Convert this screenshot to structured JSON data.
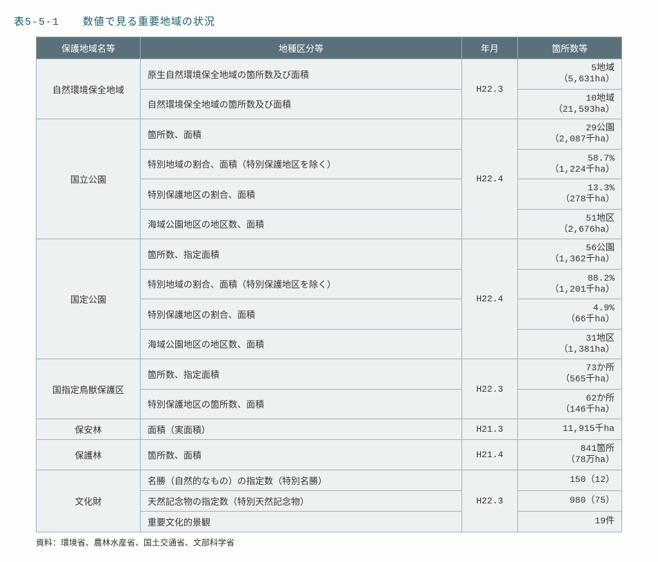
{
  "title_num": "表5-5-1",
  "title_text": "数値で見る重要地域の状況",
  "columns": [
    "保護地域名等",
    "地種区分等",
    "年月",
    "箇所数等"
  ],
  "groups": [
    {
      "name": "自然環境保全地域",
      "ym": "H22.3",
      "rows": [
        {
          "kind": "原生自然環境保全地域の箇所数及び面積",
          "val": "5地域<br>（5,631ha）"
        },
        {
          "kind": "自然環境保全地域の箇所数及び面積",
          "val": "10地域<br>（21,593ha）"
        }
      ]
    },
    {
      "name": "国立公園",
      "ym": "H22.4",
      "rows": [
        {
          "kind": "箇所数、面積",
          "val": "29公園<br>（2,087千ha）"
        },
        {
          "kind": "特別地域の割合、面積（特別保護地区を除く）",
          "val": "58.7%<br>（1,224千ha）"
        },
        {
          "kind": "特別保護地区の割合、面積",
          "val": "13.3%<br>（278千ha）"
        },
        {
          "kind": "海域公園地区の地区数、面積",
          "val": "51地区<br>（2,676ha）"
        }
      ]
    },
    {
      "name": "国定公園",
      "ym": "H22.4",
      "rows": [
        {
          "kind": "箇所数、指定面積",
          "val": "56公園<br>（1,362千ha）"
        },
        {
          "kind": "特別地域の割合、面積（特別保護地区を除く）",
          "val": "88.2%<br>（1,201千ha）"
        },
        {
          "kind": "特別保護地区の割合、面積",
          "val": "4.9%<br>（66千ha）"
        },
        {
          "kind": "海域公園地区の地区数、面積",
          "val": "31地区<br>（1,381ha）"
        }
      ]
    },
    {
      "name": "国指定鳥獣保護区",
      "ym": "H22.3",
      "rows": [
        {
          "kind": "箇所数、指定面積",
          "val": "73か所<br>（565千ha）"
        },
        {
          "kind": "特別保護地区の箇所数、面積",
          "val": "62か所<br>（146千ha）"
        }
      ]
    },
    {
      "name": "保安林",
      "ym": "H21.3",
      "rows": [
        {
          "kind": "面積（実面積）",
          "val": "11,915千ha"
        }
      ]
    },
    {
      "name": "保護林",
      "ym": "H21.4",
      "rows": [
        {
          "kind": "箇所数、面積",
          "val": "841箇所<br>（78万ha）"
        }
      ]
    },
    {
      "name": "文化財",
      "ym": "H22.3",
      "rows": [
        {
          "kind": "名勝（自然的なもの）の指定数（特別名勝）",
          "val": "150（12）"
        },
        {
          "kind": "天然記念物の指定数（特別天然記念物）",
          "val": "980（75）"
        },
        {
          "kind": "重要文化的景観",
          "val": "19件"
        }
      ]
    }
  ],
  "source": "資料：環境省、農林水産省、国土交通省、文部科学省"
}
